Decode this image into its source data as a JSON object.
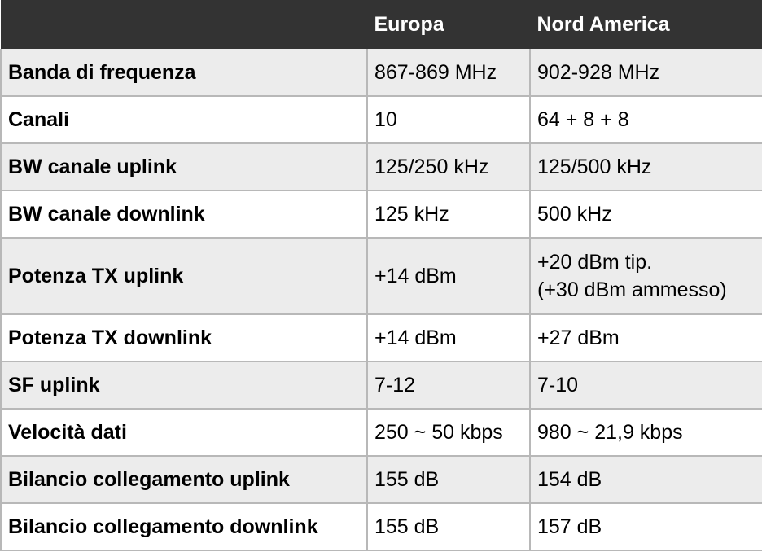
{
  "header": {
    "col_0": "",
    "col_1": "Europa",
    "col_2": "Nord America"
  },
  "rows": [
    {
      "label": "Banda di frequenza",
      "europa": "867-869 MHz",
      "nord_america": "902-928 MHz"
    },
    {
      "label": "Canali",
      "europa": "10",
      "nord_america": "64 + 8 + 8"
    },
    {
      "label": "BW canale uplink",
      "europa": "125/250 kHz",
      "nord_america": "125/500 kHz"
    },
    {
      "label": "BW canale downlink",
      "europa": "125 kHz",
      "nord_america": "500 kHz"
    },
    {
      "label": "Potenza TX uplink",
      "europa": "+14 dBm",
      "nord_america_line1": "+20 dBm tip.",
      "nord_america_line2": "(+30 dBm ammesso)"
    },
    {
      "label": "Potenza TX downlink",
      "europa": "+14 dBm",
      "nord_america": "+27 dBm"
    },
    {
      "label": "SF uplink",
      "europa": "7-12",
      "nord_america": "7-10"
    },
    {
      "label": "Velocità dati",
      "europa": "250 ~ 50 kbps",
      "nord_america": "980 ~ 21,9 kbps"
    },
    {
      "label": "Bilancio collegamento uplink",
      "europa": "155 dB",
      "nord_america": "154 dB"
    },
    {
      "label": "Bilancio collegamento downlink",
      "europa": "155 dB",
      "nord_america": "157 dB"
    }
  ],
  "colors": {
    "header_bg": "#333333",
    "header_text": "#ffffff",
    "row_alt_bg": "#ececec",
    "border": "#b8b8b8"
  }
}
